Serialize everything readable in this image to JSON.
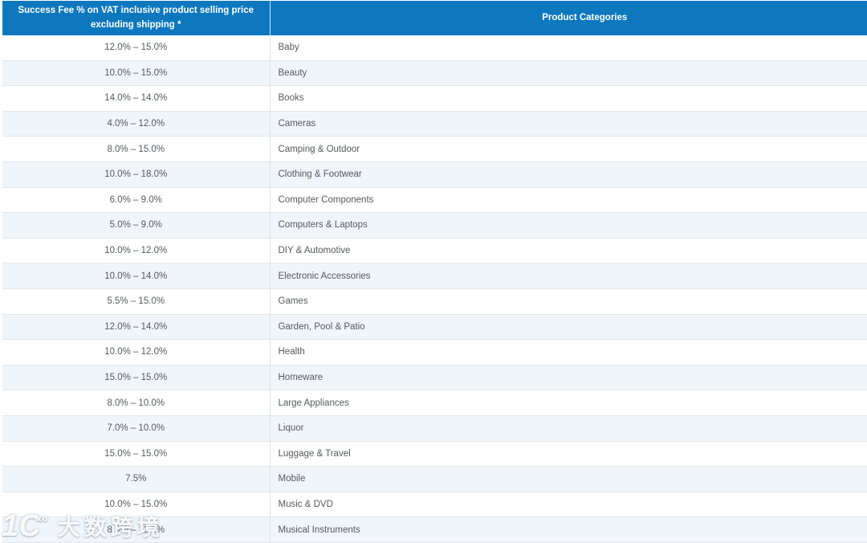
{
  "colors": {
    "header_bg": "#0e78bf",
    "header_text": "#ffffff",
    "row_bg": "#ffffff",
    "row_alt_bg": "#f0f5f9",
    "row_border": "#e2e6ea",
    "column_divider": "#dde2e6",
    "body_text": "#56595c"
  },
  "table": {
    "headers": [
      {
        "label": "Success Fee % on VAT inclusive product selling price excluding shipping *",
        "line1": "Success Fee % on VAT inclusive product selling price",
        "line2": "excluding shipping *"
      },
      {
        "label": "Product Categories"
      }
    ],
    "rows": [
      {
        "fee": "12.0% – 15.0%",
        "category": "Baby"
      },
      {
        "fee": "10.0% – 15.0%",
        "category": "Beauty"
      },
      {
        "fee": "14.0% – 14.0%",
        "category": "Books"
      },
      {
        "fee": "4.0% – 12.0%",
        "category": "Cameras"
      },
      {
        "fee": "8.0% – 15.0%",
        "category": "Camping & Outdoor"
      },
      {
        "fee": "10.0% – 18.0%",
        "category": "Clothing & Footwear"
      },
      {
        "fee": "6.0% – 9.0%",
        "category": "Computer Components"
      },
      {
        "fee": "5.0% – 9.0%",
        "category": "Computers & Laptops"
      },
      {
        "fee": "10.0% – 12.0%",
        "category": "DIY & Automotive"
      },
      {
        "fee": "10.0% – 14.0%",
        "category": "Electronic Accessories"
      },
      {
        "fee": "5.5% – 15.0%",
        "category": "Games"
      },
      {
        "fee": "12.0% – 14.0%",
        "category": "Garden, Pool & Patio"
      },
      {
        "fee": "10.0% – 12.0%",
        "category": "Health"
      },
      {
        "fee": "15.0% – 15.0%",
        "category": "Homeware"
      },
      {
        "fee": "8.0% – 10.0%",
        "category": "Large Appliances"
      },
      {
        "fee": "7.0% – 10.0%",
        "category": "Liquor"
      },
      {
        "fee": "15.0% – 15.0%",
        "category": "Luggage & Travel"
      },
      {
        "fee": "7.5%",
        "category": "Mobile"
      },
      {
        "fee": "10.0% – 15.0%",
        "category": "Music & DVD"
      },
      {
        "fee": "8.0% – 12.0%",
        "category": "Musical Instruments"
      }
    ]
  },
  "watermark": {
    "logo_main": "1C",
    "logo_sup": "∞",
    "text": "大数跨境"
  }
}
